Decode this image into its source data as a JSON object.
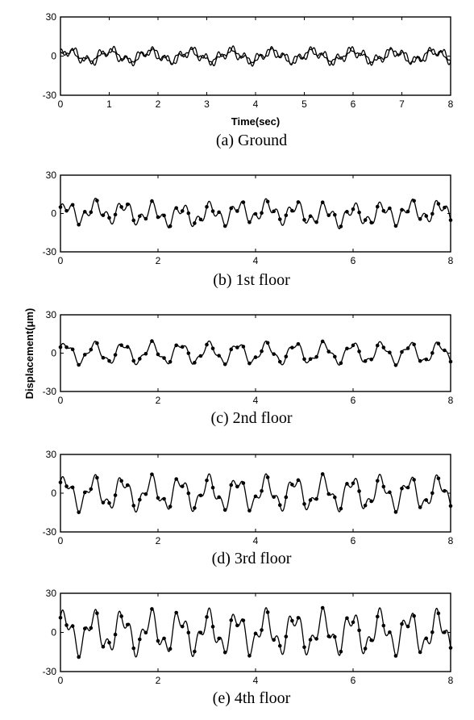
{
  "shared_ylabel": "Displacement(μm)",
  "chart_data": [
    {
      "type": "line",
      "caption": "(a)  Ground",
      "xlabel": "Time(sec)",
      "xlim": [
        0,
        8
      ],
      "ylim": [
        -30,
        30
      ],
      "xticks": [
        0,
        1,
        2,
        3,
        4,
        5,
        6,
        7,
        8
      ],
      "yticks": [
        30,
        0,
        -30
      ],
      "series": [
        {
          "style": "solid",
          "signal": {
            "components": [
              [
                4.0,
                1.2,
                0.0
              ],
              [
                2.5,
                3.7,
                1.1
              ],
              [
                1.3,
                9.0,
                2.3
              ]
            ],
            "x_range": [
              0,
              8
            ]
          }
        },
        {
          "style": "solid",
          "signal": {
            "components": [
              [
                3.5,
                1.2,
                0.6
              ],
              [
                2.5,
                3.7,
                1.9
              ],
              [
                1.2,
                9.0,
                0.4
              ]
            ],
            "x_range": [
              0,
              8
            ]
          }
        }
      ]
    },
    {
      "type": "line",
      "caption": "(b)  1st  floor",
      "xlabel": "",
      "xlim": [
        0,
        8
      ],
      "ylim": [
        -30,
        30
      ],
      "xticks": [
        0,
        2,
        4,
        6,
        8
      ],
      "yticks": [
        30,
        0,
        -30
      ],
      "series": [
        {
          "style": "solid",
          "signal": {
            "components": [
              [
                6.0,
                1.7,
                0.2
              ],
              [
                4.5,
                4.3,
                1.0
              ],
              [
                1.5,
                0.3,
                0.0
              ]
            ],
            "x_range": [
              0,
              8
            ]
          }
        },
        {
          "style": "marker",
          "signal": {
            "components": [
              [
                6.0,
                1.7,
                0.2
              ],
              [
                4.5,
                4.3,
                1.0
              ],
              [
                1.5,
                0.3,
                0.0
              ]
            ],
            "x_range": [
              0,
              8
            ],
            "marker_step": 0.125
          }
        }
      ]
    },
    {
      "type": "line",
      "caption": "(c)  2nd  floor",
      "xlabel": "",
      "xlim": [
        0,
        8
      ],
      "ylim": [
        -30,
        30
      ],
      "xticks": [
        0,
        2,
        4,
        6,
        8
      ],
      "yticks": [
        30,
        0,
        -30
      ],
      "series": [
        {
          "style": "solid",
          "signal": {
            "components": [
              [
                7.0,
                1.7,
                0.4
              ],
              [
                2.5,
                4.3,
                0.9
              ]
            ],
            "x_range": [
              0,
              8
            ]
          }
        },
        {
          "style": "marker",
          "signal": {
            "components": [
              [
                7.0,
                1.7,
                0.4
              ],
              [
                2.5,
                4.3,
                0.9
              ]
            ],
            "x_range": [
              0,
              8
            ],
            "marker_step": 0.125
          }
        }
      ]
    },
    {
      "type": "line",
      "caption": "(d)  3rd  floor",
      "xlabel": "",
      "xlim": [
        0,
        8
      ],
      "ylim": [
        -30,
        30
      ],
      "xticks": [
        0,
        2,
        4,
        6,
        8
      ],
      "yticks": [
        30,
        0,
        -30
      ],
      "series": [
        {
          "style": "solid",
          "signal": {
            "components": [
              [
                10.0,
                1.7,
                0.5
              ],
              [
                5.0,
                4.3,
                0.8
              ]
            ],
            "x_range": [
              0,
              8
            ]
          }
        },
        {
          "style": "marker",
          "signal": {
            "components": [
              [
                10.0,
                1.7,
                0.5
              ],
              [
                5.0,
                4.3,
                0.8
              ]
            ],
            "x_range": [
              0,
              8
            ],
            "marker_step": 0.125
          }
        }
      ]
    },
    {
      "type": "line",
      "caption": "(e)  4th  floor",
      "xlabel": "",
      "xlim": [
        0,
        8
      ],
      "ylim": [
        -30,
        30
      ],
      "xticks": [
        0,
        2,
        4,
        6,
        8
      ],
      "yticks": [
        30,
        0,
        -30
      ],
      "series": [
        {
          "style": "solid",
          "signal": {
            "components": [
              [
                12.0,
                1.7,
                0.6
              ],
              [
                7.0,
                4.3,
                0.7
              ]
            ],
            "x_range": [
              0,
              8
            ]
          }
        },
        {
          "style": "marker",
          "signal": {
            "components": [
              [
                12.0,
                1.7,
                0.6
              ],
              [
                7.0,
                4.3,
                0.7
              ]
            ],
            "x_range": [
              0,
              8
            ],
            "marker_step": 0.125
          }
        }
      ]
    }
  ]
}
